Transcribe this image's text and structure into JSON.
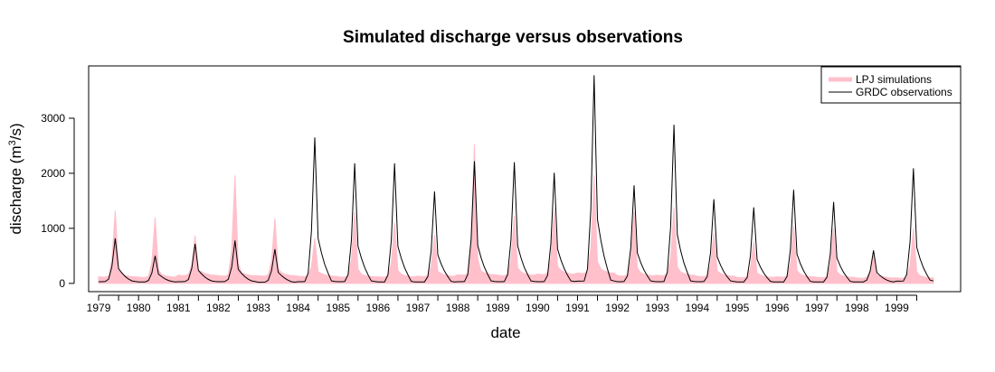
{
  "chart_data": {
    "type": "area",
    "title": "Simulated discharge versus observations",
    "xlabel": "date",
    "ylabel": "discharge (m",
    "ylabel_sup": "3",
    "ylabel_tail": "/s)",
    "xlim": [
      1978.75,
      2000.6
    ],
    "ylim": [
      -150,
      3950
    ],
    "x_ticks": [
      1979,
      1980,
      1981,
      1982,
      1983,
      1984,
      1985,
      1986,
      1987,
      1988,
      1989,
      1990,
      1991,
      1992,
      1993,
      1994,
      1995,
      1996,
      1997,
      1998,
      1999
    ],
    "x_tick_labels": [
      "1979",
      "1980",
      "1981",
      "1982",
      "1983",
      "1984",
      "1985",
      "1986",
      "1987",
      "1988",
      "1989",
      "1990",
      "1991",
      "1992",
      "1993",
      "1994",
      "1995",
      "1996",
      "1997",
      "1998",
      "1999"
    ],
    "y_ticks": [
      0,
      1000,
      2000,
      3000
    ],
    "y_tick_labels": [
      "0",
      "1000",
      "2000",
      "3000"
    ],
    "grid": false,
    "legend_position": "top-right",
    "colors": {
      "simulations": "#ffc0cb",
      "observations": "#000000"
    },
    "series": [
      {
        "name": "LPJ simulations",
        "style": "filled area",
        "annual_peaks": [
          {
            "year": 1979,
            "peak": 1320,
            "base": 120
          },
          {
            "year": 1980,
            "peak": 1200,
            "base": 115
          },
          {
            "year": 1981,
            "peak": 870,
            "base": 150
          },
          {
            "year": 1982,
            "peak": 1960,
            "base": 140
          },
          {
            "year": 1983,
            "peak": 1180,
            "base": 140
          },
          {
            "year": 1984,
            "peak": 820,
            "base": 130
          },
          {
            "year": 1985,
            "peak": 1300,
            "base": 120
          },
          {
            "year": 1986,
            "peak": 1100,
            "base": 120
          },
          {
            "year": 1987,
            "peak": 880,
            "base": 130
          },
          {
            "year": 1988,
            "peak": 2530,
            "base": 160
          },
          {
            "year": 1989,
            "peak": 1230,
            "base": 150
          },
          {
            "year": 1990,
            "peak": 1320,
            "base": 170
          },
          {
            "year": 1991,
            "peak": 1960,
            "base": 190
          },
          {
            "year": 1992,
            "peak": 1300,
            "base": 140
          },
          {
            "year": 1993,
            "peak": 1380,
            "base": 150
          },
          {
            "year": 1994,
            "peak": 920,
            "base": 130
          },
          {
            "year": 1995,
            "peak": 760,
            "base": 110
          },
          {
            "year": 1996,
            "peak": 1050,
            "base": 120
          },
          {
            "year": 1997,
            "peak": 1000,
            "base": 110
          },
          {
            "year": 1998,
            "peak": 520,
            "base": 100
          },
          {
            "year": 1999,
            "peak": 1000,
            "base": 100
          }
        ]
      },
      {
        "name": "GRDC observations",
        "style": "line",
        "annual_peaks": [
          {
            "year": 1979,
            "peak": 820,
            "base": 30
          },
          {
            "year": 1980,
            "peak": 500,
            "base": 25
          },
          {
            "year": 1981,
            "peak": 720,
            "base": 30
          },
          {
            "year": 1982,
            "peak": 780,
            "base": 30
          },
          {
            "year": 1983,
            "peak": 620,
            "base": 20
          },
          {
            "year": 1984,
            "peak": 2650,
            "base": 30
          },
          {
            "year": 1985,
            "peak": 2180,
            "base": 30
          },
          {
            "year": 1986,
            "peak": 2180,
            "base": 25
          },
          {
            "year": 1987,
            "peak": 1670,
            "base": 25
          },
          {
            "year": 1988,
            "peak": 2220,
            "base": 30
          },
          {
            "year": 1989,
            "peak": 2200,
            "base": 30
          },
          {
            "year": 1990,
            "peak": 2010,
            "base": 30
          },
          {
            "year": 1991,
            "peak": 3780,
            "base": 40
          },
          {
            "year": 1992,
            "peak": 1780,
            "base": 30
          },
          {
            "year": 1993,
            "peak": 2880,
            "base": 30
          },
          {
            "year": 1994,
            "peak": 1530,
            "base": 30
          },
          {
            "year": 1995,
            "peak": 1380,
            "base": 25
          },
          {
            "year": 1996,
            "peak": 1700,
            "base": 25
          },
          {
            "year": 1997,
            "peak": 1480,
            "base": 25
          },
          {
            "year": 1998,
            "peak": 600,
            "base": 25
          },
          {
            "year": 1999,
            "peak": 2090,
            "base": 40
          }
        ]
      }
    ]
  }
}
